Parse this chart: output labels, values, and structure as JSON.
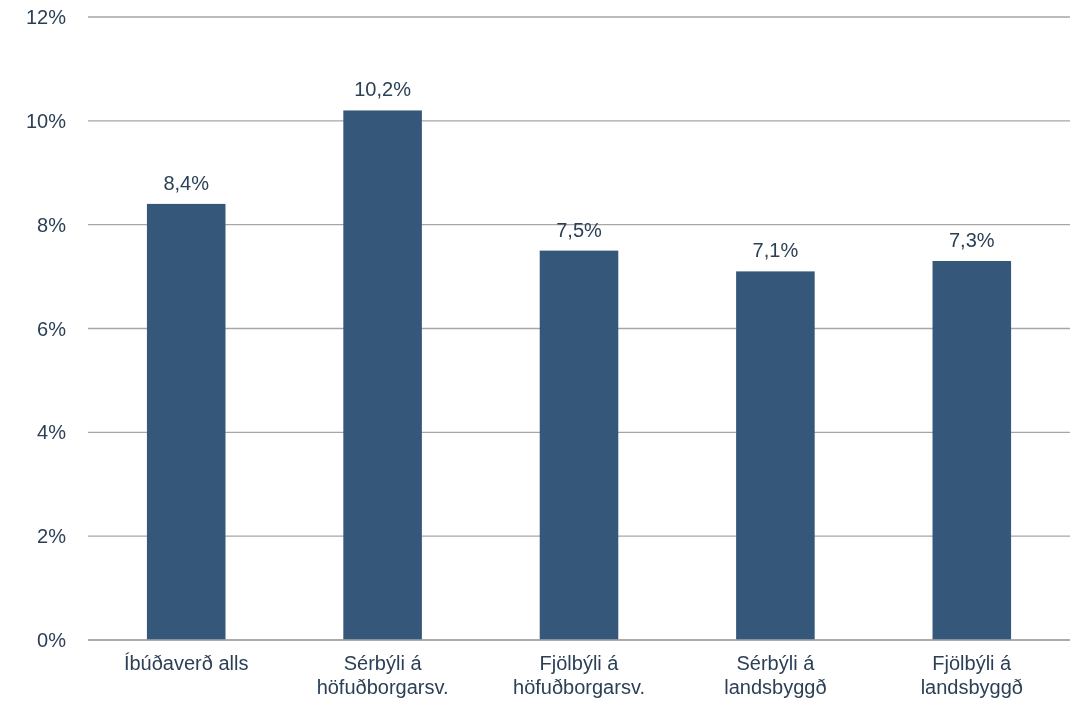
{
  "chart_data": {
    "type": "bar",
    "categories": [
      "Íbúðaverð alls",
      "Sérbýli á höfuðborgarsv.",
      "Fjölbýli á höfuðborgarsv.",
      "Sérbýli á landsbyggð",
      "Fjölbýli á landsbyggð"
    ],
    "values": [
      8.4,
      10.2,
      7.5,
      7.1,
      7.3
    ],
    "value_labels": [
      "8,4%",
      "10,2%",
      "7,5%",
      "7,1%",
      "7,3%"
    ],
    "color": "#34577a",
    "ylim": [
      0,
      12
    ],
    "yticks": [
      {
        "value": 0,
        "label": "0%"
      },
      {
        "value": 2,
        "label": "2%"
      },
      {
        "value": 4,
        "label": "4%"
      },
      {
        "value": 6,
        "label": "6%"
      },
      {
        "value": 8,
        "label": "8%"
      },
      {
        "value": 10,
        "label": "10%"
      },
      {
        "value": 12,
        "label": "12%"
      }
    ],
    "grid": "y"
  }
}
